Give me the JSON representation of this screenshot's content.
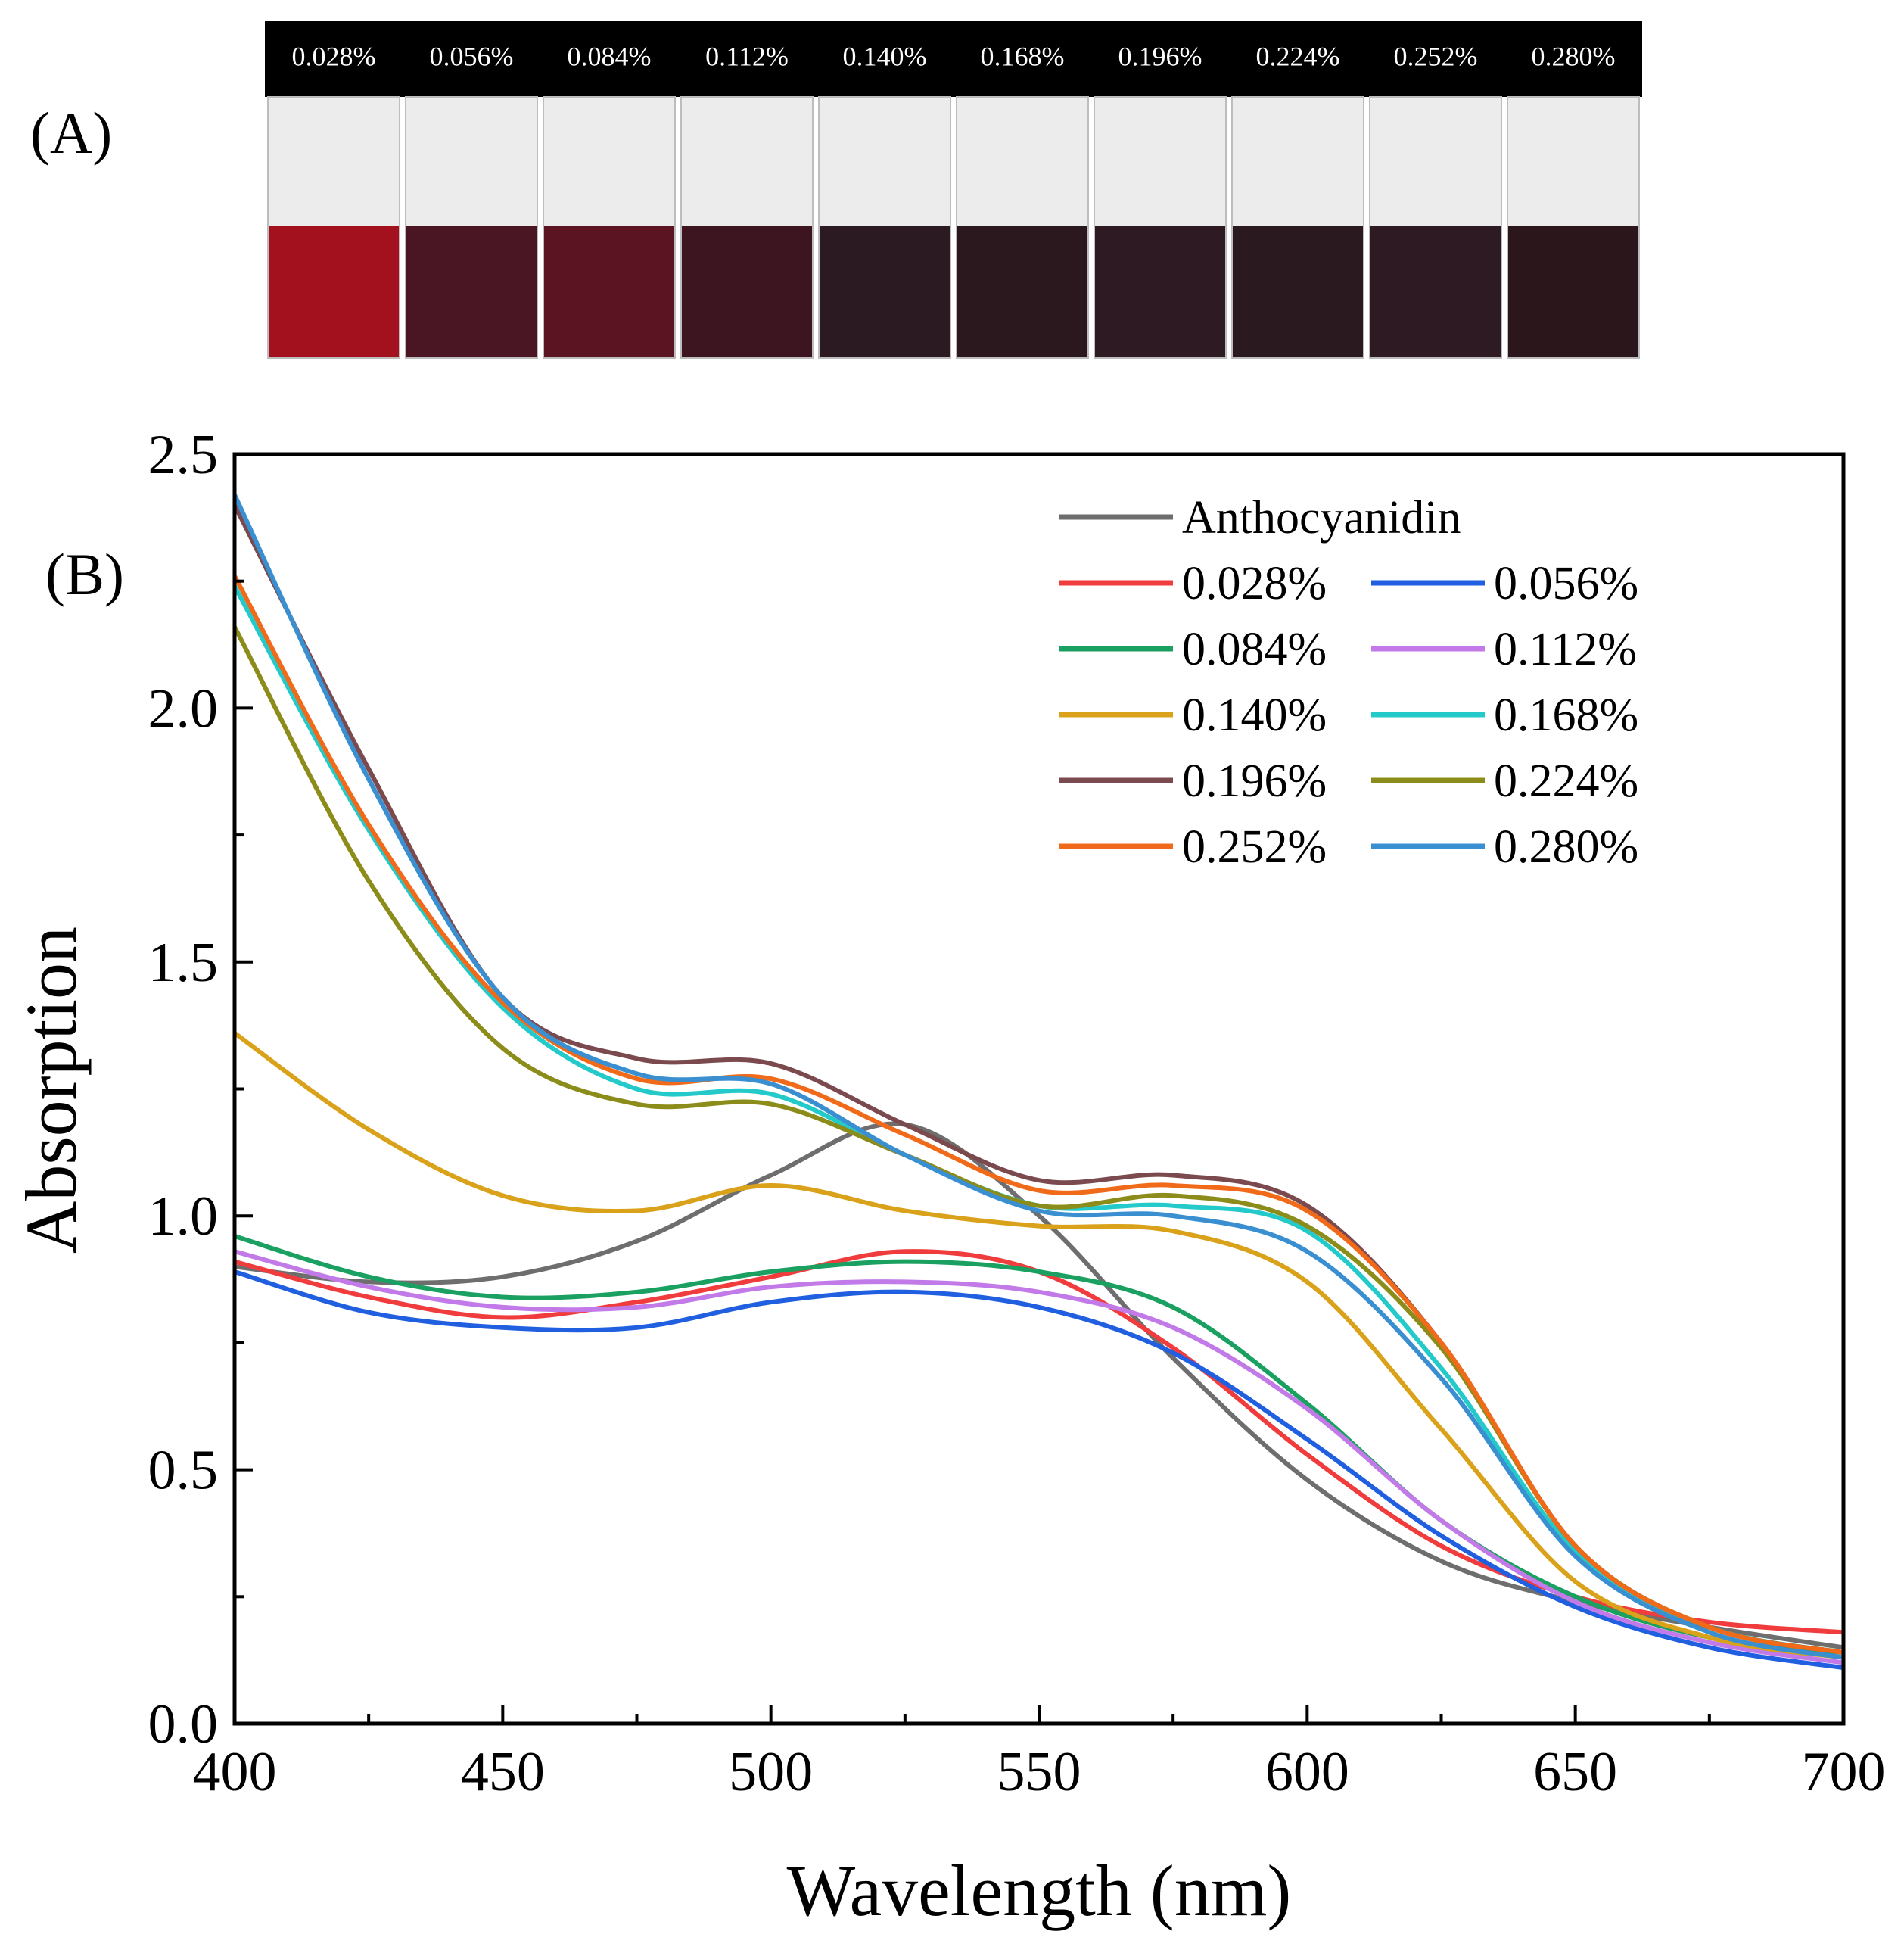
{
  "panel_a": {
    "label": "(A)",
    "vials": [
      {
        "label": "0.028%",
        "color": "#a3101e"
      },
      {
        "label": "0.056%",
        "color": "#4a1624"
      },
      {
        "label": "0.084%",
        "color": "#5a1422"
      },
      {
        "label": "0.112%",
        "color": "#3d1520"
      },
      {
        "label": "0.140%",
        "color": "#2c1a22"
      },
      {
        "label": "0.168%",
        "color": "#2a181e"
      },
      {
        "label": "0.196%",
        "color": "#2d1a22"
      },
      {
        "label": "0.224%",
        "color": "#2a1a1f"
      },
      {
        "label": "0.252%",
        "color": "#2e1a22"
      },
      {
        "label": "0.280%",
        "color": "#2b161c"
      }
    ]
  },
  "chart_data": {
    "type": "line",
    "panel_label": "(B)",
    "xlabel": "Wavelength (nm)",
    "ylabel": "Absorption",
    "xlim": [
      400,
      700
    ],
    "ylim": [
      0.0,
      2.5
    ],
    "xticks": [
      "400",
      "450",
      "500",
      "550",
      "600",
      "650",
      "700"
    ],
    "yticks": [
      "0.0",
      "0.5",
      "1.0",
      "1.5",
      "2.0",
      "2.5"
    ],
    "x": [
      400,
      425,
      450,
      475,
      500,
      525,
      550,
      575,
      600,
      625,
      650,
      675,
      700
    ],
    "series": [
      {
        "name": "Anthocyanidin",
        "color": "#6e6e6e",
        "values": [
          0.9,
          0.87,
          0.88,
          0.95,
          1.08,
          1.18,
          1.0,
          0.72,
          0.48,
          0.32,
          0.24,
          0.19,
          0.15
        ]
      },
      {
        "name": "0.028%",
        "color": "#f03c3c",
        "values": [
          0.91,
          0.84,
          0.8,
          0.83,
          0.88,
          0.93,
          0.89,
          0.74,
          0.53,
          0.35,
          0.25,
          0.2,
          0.18
        ]
      },
      {
        "name": "0.056%",
        "color": "#1f5fe0",
        "values": [
          0.89,
          0.81,
          0.78,
          0.78,
          0.83,
          0.85,
          0.82,
          0.73,
          0.56,
          0.37,
          0.23,
          0.15,
          0.11
        ]
      },
      {
        "name": "0.084%",
        "color": "#1aa060",
        "values": [
          0.96,
          0.88,
          0.84,
          0.85,
          0.89,
          0.91,
          0.89,
          0.82,
          0.63,
          0.4,
          0.25,
          0.17,
          0.14
        ]
      },
      {
        "name": "0.112%",
        "color": "#c27ae8",
        "values": [
          0.93,
          0.86,
          0.82,
          0.82,
          0.86,
          0.87,
          0.85,
          0.78,
          0.62,
          0.4,
          0.24,
          0.16,
          0.12
        ]
      },
      {
        "name": "0.140%",
        "color": "#d9a21a",
        "values": [
          1.36,
          1.17,
          1.04,
          1.01,
          1.06,
          1.01,
          0.98,
          0.97,
          0.87,
          0.58,
          0.28,
          0.17,
          0.13
        ]
      },
      {
        "name": "0.168%",
        "color": "#24c9c9",
        "values": [
          2.24,
          1.76,
          1.41,
          1.25,
          1.24,
          1.12,
          1.02,
          1.02,
          0.97,
          0.7,
          0.34,
          0.19,
          0.14
        ]
      },
      {
        "name": "0.196%",
        "color": "#7a4a4e",
        "values": [
          2.4,
          1.88,
          1.43,
          1.31,
          1.3,
          1.18,
          1.07,
          1.08,
          1.02,
          0.75,
          0.35,
          0.19,
          0.14
        ]
      },
      {
        "name": "0.224%",
        "color": "#8c8c1a",
        "values": [
          2.16,
          1.66,
          1.33,
          1.22,
          1.22,
          1.12,
          1.02,
          1.04,
          0.98,
          0.74,
          0.35,
          0.19,
          0.14
        ]
      },
      {
        "name": "0.252%",
        "color": "#f06a1a",
        "values": [
          2.26,
          1.77,
          1.42,
          1.27,
          1.27,
          1.16,
          1.05,
          1.06,
          1.01,
          0.75,
          0.35,
          0.19,
          0.14
        ]
      },
      {
        "name": "0.280%",
        "color": "#3a8fd0",
        "values": [
          2.42,
          1.86,
          1.43,
          1.28,
          1.26,
          1.12,
          1.01,
          1.0,
          0.93,
          0.68,
          0.33,
          0.18,
          0.13
        ]
      }
    ]
  }
}
